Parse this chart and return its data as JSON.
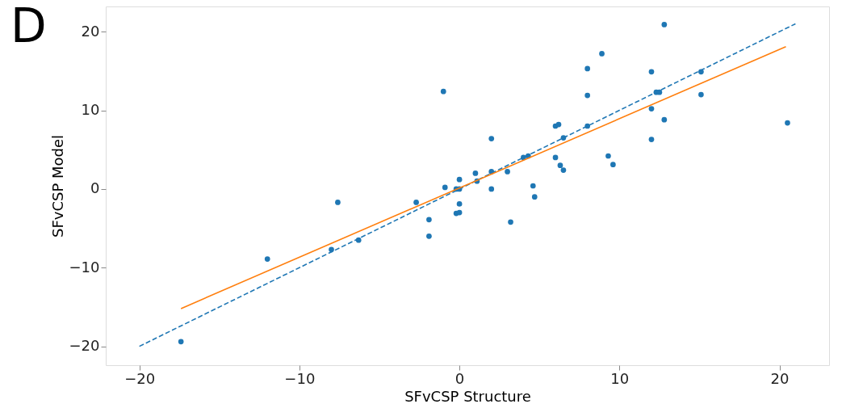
{
  "chart_data": {
    "type": "scatter",
    "xlabel": "SFvCSP Structure",
    "ylabel": "SFvCSP Model",
    "annotations": [
      "D"
    ],
    "xlim": [
      -22.1,
      23.1
    ],
    "ylim": [
      -22.4,
      23.2
    ],
    "xticks": [
      -20,
      -10,
      0,
      10,
      20
    ],
    "yticks": [
      -20,
      -10,
      0,
      10,
      20
    ],
    "grid": false,
    "series": [
      {
        "color": "#1f77b4",
        "marker": "circle",
        "x": [
          -17.4,
          -12,
          -7.6,
          -8,
          -6.3,
          -2.7,
          -1.9,
          -1.9,
          -1.0,
          -0.9,
          -0.2,
          0,
          0,
          0,
          -0.2,
          0,
          1,
          1.1,
          2,
          2,
          2,
          3,
          3.2,
          4.0,
          4.3,
          4.6,
          4.7,
          6,
          6.2,
          6,
          6.3,
          6.5,
          6.5,
          8,
          8,
          8,
          8.9,
          9.3,
          9.6,
          12.0,
          12.3,
          12.5,
          12.0,
          12.0,
          12.8,
          12.8,
          15.1,
          15.1,
          20.5
        ],
        "values": [
          -19.4,
          -8.9,
          -1.7,
          -7.7,
          -6.5,
          -1.7,
          -3.9,
          -6.0,
          12.4,
          0.2,
          0,
          0,
          1.2,
          -1.9,
          -3.1,
          -3.0,
          2.0,
          1.0,
          6.4,
          2.2,
          0,
          2.2,
          -4.2,
          4.0,
          4.2,
          0.4,
          -1.0,
          8.0,
          8.2,
          4.0,
          3.0,
          2.4,
          6.5,
          15.3,
          11.9,
          8.0,
          17.2,
          4.2,
          3.1,
          14.9,
          12.3,
          12.3,
          10.2,
          6.3,
          8.8,
          20.9,
          14.9,
          12.0,
          8.4
        ]
      },
      {
        "type": "line",
        "color": "#1f77b4",
        "line_style": "dashed",
        "marker": "none",
        "x": [
          -20,
          21
        ],
        "values": [
          -20,
          21
        ]
      },
      {
        "type": "line",
        "color": "#ff7f0e",
        "line_style": "solid",
        "marker": "none",
        "x": [
          -17.4,
          20.4
        ],
        "values": [
          -15.2,
          18.1
        ]
      }
    ]
  }
}
